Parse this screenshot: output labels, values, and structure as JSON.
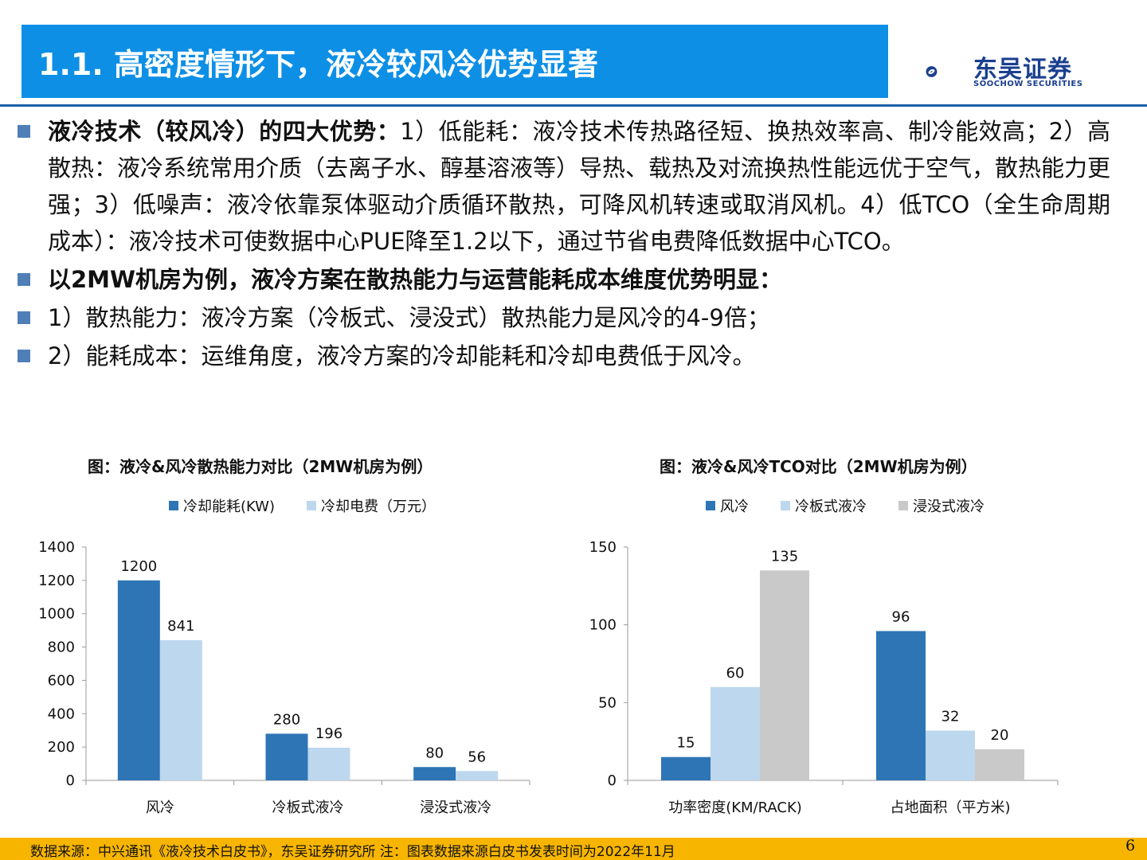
{
  "header": {
    "title": "1.1. 高密度情形下，液冷较风冷优势显著",
    "logo_cn": "东吴证券",
    "logo_en": "SOOCHOW SECURITIES"
  },
  "bullets": {
    "b1_bold": "液冷技术（较风冷）的四大优势：",
    "b1_text": "1）低能耗：液冷技术传热路径短、换热效率高、制冷能效高；2）高散热：液冷系统常用介质（去离子水、醇基溶液等）导热、载热及对流换热性能远优于空气，散热能力更强；3）低噪声：液冷依靠泵体驱动介质循环散热，可降风机转速或取消风机。4）低TCO（全生命周期成本）：液冷技术可使数据中心PUE降至1.2以下，通过节省电费降低数据中心TCO。",
    "b2_bold": "以2MW机房为例，液冷方案在散热能力与运营能耗成本维度优势明显：",
    "b3_text": "1）散热能力：液冷方案（冷板式、浸没式）散热能力是风冷的4-9倍；",
    "b4_text": "2）能耗成本：运维角度，液冷方案的冷却能耗和冷却电费低于风冷。"
  },
  "chart_data": [
    {
      "type": "bar",
      "title": "图：液冷&风冷散热能力对比（2MW机房为例）",
      "categories": [
        "风冷",
        "冷板式液冷",
        "浸没式液冷"
      ],
      "series": [
        {
          "name": "冷却能耗(KW)",
          "values": [
            1200,
            280,
            80
          ],
          "color": "#2e75b6"
        },
        {
          "name": "冷却电费（万元）",
          "values": [
            841,
            196,
            56
          ],
          "color": "#bdd7ee"
        }
      ],
      "ylim": [
        0,
        1400
      ],
      "yticks": [
        0,
        200,
        400,
        600,
        800,
        1000,
        1200,
        1400
      ],
      "legend": "top",
      "grid": false
    },
    {
      "type": "bar",
      "title": "图：液冷&风冷TCO对比（2MW机房为例）",
      "categories": [
        "功率密度(KM/RACK)",
        "占地面积（平方米)"
      ],
      "series": [
        {
          "name": "风冷",
          "values": [
            15,
            96
          ],
          "color": "#2e75b6"
        },
        {
          "name": "冷板式液冷",
          "values": [
            60,
            32
          ],
          "color": "#bdd7ee"
        },
        {
          "name": "浸没式液冷",
          "values": [
            135,
            20
          ],
          "color": "#c9c9c9"
        }
      ],
      "ylim": [
        0,
        150
      ],
      "yticks": [
        0,
        50,
        100,
        150
      ],
      "legend": "top",
      "grid": false
    }
  ],
  "footer": {
    "source": "数据来源：中兴通讯《液冷技术白皮书》，东吴证券研究所 注：图表数据来源白皮书发表时间为2022年11月",
    "page": "6"
  }
}
